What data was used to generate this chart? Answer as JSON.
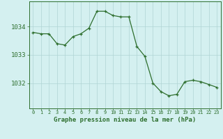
{
  "x": [
    0,
    1,
    2,
    3,
    4,
    5,
    6,
    7,
    8,
    9,
    10,
    11,
    12,
    13,
    14,
    15,
    16,
    17,
    18,
    19,
    20,
    21,
    22,
    23
  ],
  "y": [
    1033.8,
    1033.75,
    1033.75,
    1033.4,
    1033.35,
    1033.65,
    1033.75,
    1033.95,
    1034.55,
    1034.55,
    1034.4,
    1034.35,
    1034.35,
    1033.3,
    1032.95,
    1032.0,
    1031.7,
    1031.55,
    1031.6,
    1032.05,
    1032.1,
    1032.05,
    1031.95,
    1031.85
  ],
  "line_color": "#2d6e2d",
  "marker": "+",
  "marker_color": "#2d6e2d",
  "bg_color": "#d4f0f0",
  "grid_color": "#b0d4d4",
  "xlabel": "Graphe pression niveau de la mer (hPa)",
  "xlabel_color": "#2d6e2d",
  "tick_color": "#2d6e2d",
  "yticks": [
    1032,
    1033,
    1034
  ],
  "ylim": [
    1031.1,
    1034.9
  ],
  "xlim": [
    -0.5,
    23.5
  ],
  "spine_color": "#2d6e2d"
}
